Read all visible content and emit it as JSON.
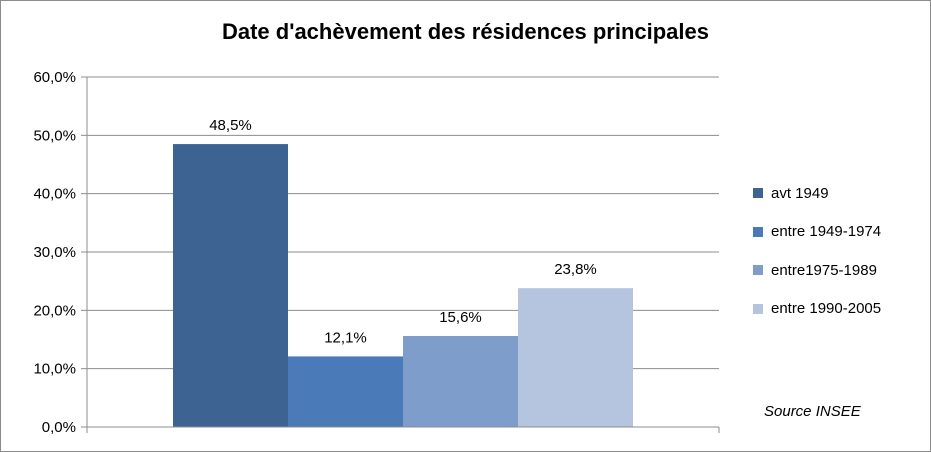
{
  "chart_data": {
    "type": "bar",
    "title": "Date d'achèvement des résidences principales",
    "categories": [
      "avt 1949",
      "entre 1949-1974",
      "entre1975-1989",
      "entre 1990-2005"
    ],
    "values": [
      48.5,
      12.1,
      15.6,
      23.8
    ],
    "value_labels": [
      "48,5%",
      "12,1%",
      "15,6%",
      "23,8%"
    ],
    "colors": [
      "#3d6393",
      "#4a7ab8",
      "#7e9dcb",
      "#b5c5e0"
    ],
    "ylim": [
      0,
      60
    ],
    "yticks": [
      0,
      10,
      20,
      30,
      40,
      50,
      60
    ],
    "ytick_labels": [
      "0,0%",
      "10,0%",
      "20,0%",
      "30,0%",
      "40,0%",
      "50,0%",
      "60,0%"
    ],
    "grid": true,
    "legend_position": "right",
    "xlabel": "",
    "ylabel": "",
    "source_note": "Source INSEE"
  }
}
